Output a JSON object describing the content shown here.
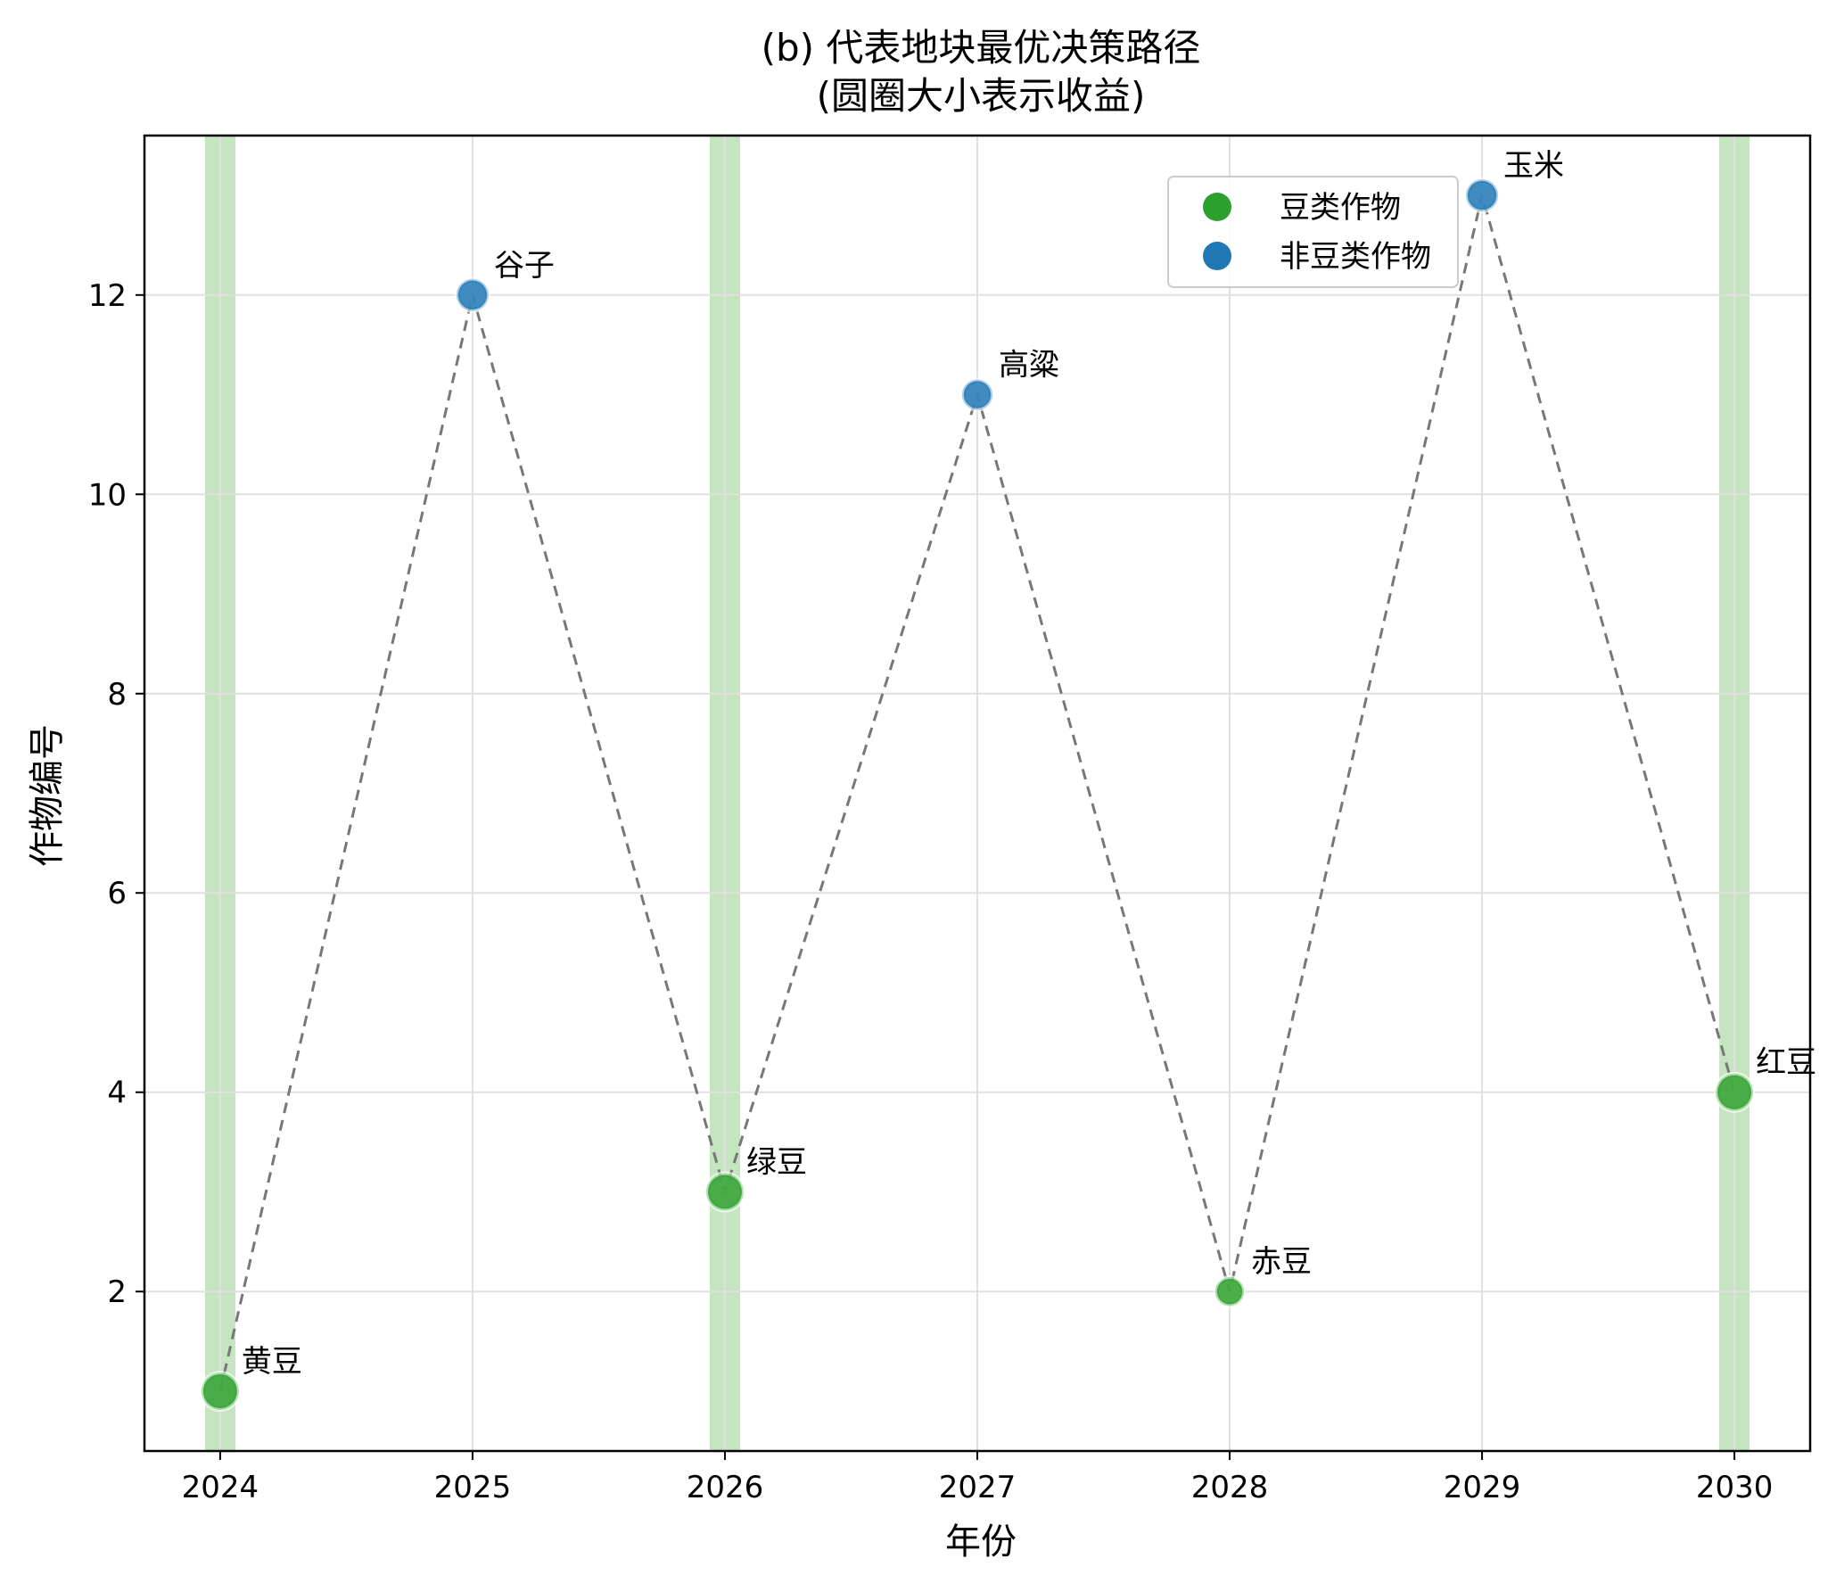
{
  "chart_data": {
    "type": "scatter",
    "title": "(b) 代表地块最优决策路径",
    "subtitle": "(圆圈大小表示收益)",
    "xlabel": "年份",
    "ylabel": "作物编号",
    "xlim": [
      2023.7,
      2030.3
    ],
    "ylim": [
      0.4,
      13.6
    ],
    "x_ticks": [
      2024,
      2025,
      2026,
      2027,
      2028,
      2029,
      2030
    ],
    "y_ticks": [
      2,
      4,
      6,
      8,
      10,
      12
    ],
    "grid": true,
    "legend_position": "top-right",
    "colors": {
      "legume": "#2ca02c",
      "non_legume": "#1f77b4",
      "highlight_band": "#c5e4c0",
      "path_line": "#777777",
      "grid": "#e0e0e0"
    },
    "legend": [
      {
        "label": "豆类作物",
        "color_key": "legume"
      },
      {
        "label": "非豆类作物",
        "color_key": "non_legume"
      }
    ],
    "highlight_years": [
      2024,
      2026,
      2030
    ],
    "points": [
      {
        "x": 2024,
        "y": 1,
        "label": "黄豆",
        "group": "legume",
        "size_rel": 1.0
      },
      {
        "x": 2025,
        "y": 12,
        "label": "谷子",
        "group": "non_legume",
        "size_rel": 0.85
      },
      {
        "x": 2026,
        "y": 3,
        "label": "绿豆",
        "group": "legume",
        "size_rel": 1.0
      },
      {
        "x": 2027,
        "y": 11,
        "label": "高粱",
        "group": "non_legume",
        "size_rel": 0.8
      },
      {
        "x": 2028,
        "y": 2,
        "label": "赤豆",
        "group": "legume",
        "size_rel": 0.75
      },
      {
        "x": 2029,
        "y": 13,
        "label": "玉米",
        "group": "non_legume",
        "size_rel": 0.85
      },
      {
        "x": 2030,
        "y": 4,
        "label": "红豆",
        "group": "legume",
        "size_rel": 1.0
      }
    ]
  }
}
